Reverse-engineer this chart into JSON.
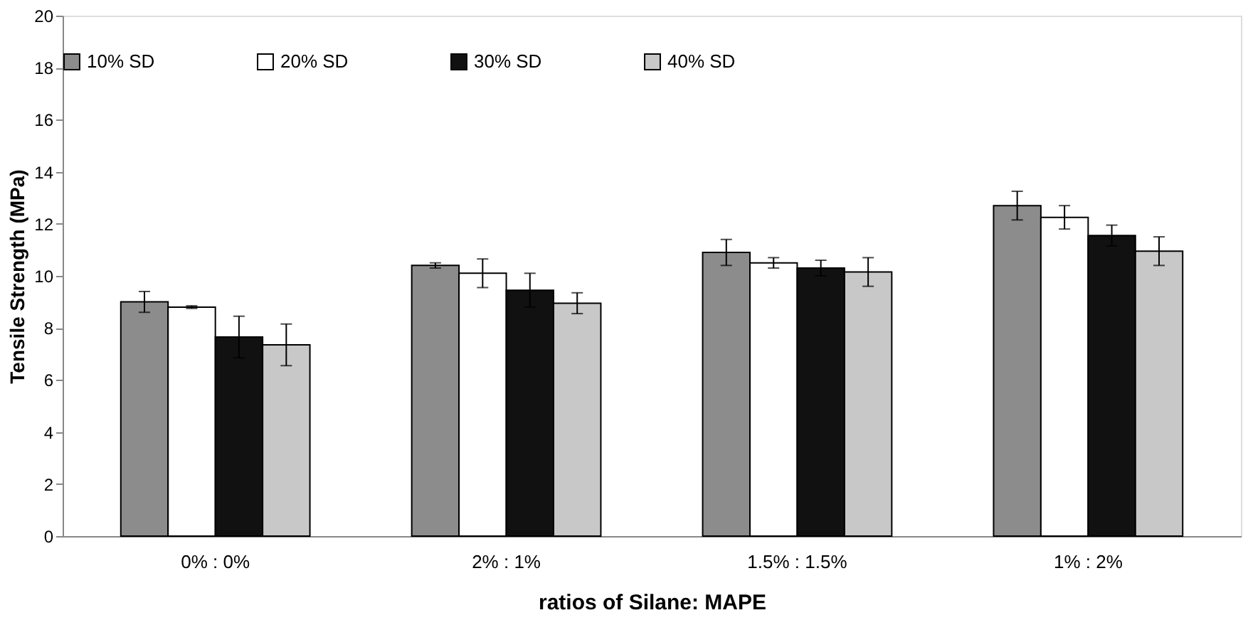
{
  "chart_data": {
    "type": "bar",
    "xlabel": "ratios of Silane: MAPE",
    "ylabel": "Tensile Strength (MPa)",
    "categories": [
      "0% : 0%",
      "2% : 1%",
      "1.5% : 1.5%",
      "1% : 2%"
    ],
    "series": [
      {
        "name": "10% SD",
        "color": "#8c8c8c",
        "values": [
          9.0,
          10.4,
          10.9,
          12.7
        ],
        "errors": [
          0.4,
          0.1,
          0.5,
          0.55
        ]
      },
      {
        "name": "20% SD",
        "color": "#ffffff",
        "values": [
          8.8,
          10.1,
          10.5,
          12.25
        ],
        "errors": [
          0.05,
          0.55,
          0.2,
          0.45
        ]
      },
      {
        "name": "30% SD",
        "color": "#111111",
        "values": [
          7.65,
          9.45,
          10.3,
          11.55
        ],
        "errors": [
          0.8,
          0.65,
          0.3,
          0.4
        ]
      },
      {
        "name": "40% SD",
        "color": "#c8c8c8",
        "values": [
          7.35,
          8.95,
          10.15,
          10.95
        ],
        "errors": [
          0.8,
          0.4,
          0.55,
          0.55
        ]
      }
    ],
    "ylim": [
      0,
      20
    ],
    "yticks": [
      0,
      2,
      4,
      6,
      8,
      10,
      12,
      14,
      16,
      18,
      20
    ],
    "legend": "top",
    "grid": false
  }
}
